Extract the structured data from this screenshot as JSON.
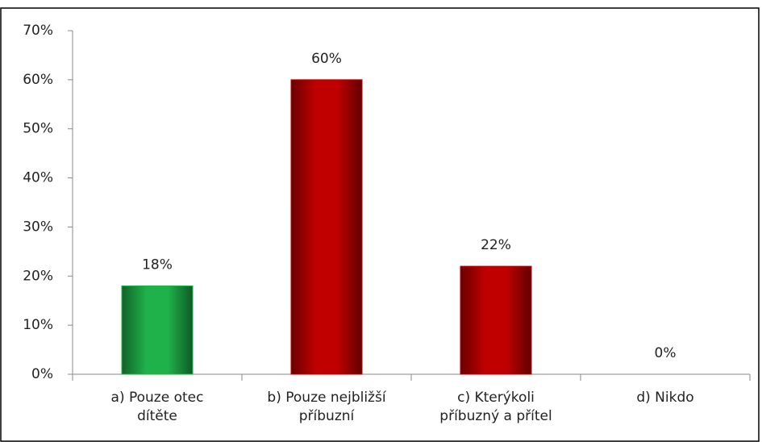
{
  "chart_data": {
    "type": "bar",
    "categories": [
      "a) Pouze otec dítěte",
      "b) Pouze nejbližší příbuzní",
      "c) Kterýkoli příbuzný a přítel",
      "d) Nikdo"
    ],
    "values": [
      18,
      60,
      22,
      0
    ],
    "value_labels": [
      "18%",
      "60%",
      "22%",
      "0%"
    ],
    "colors": [
      "#1fb24a",
      "#c00000",
      "#c00000",
      "#c00000"
    ],
    "ylim": [
      0,
      70
    ],
    "yticks": [
      {
        "value": 0,
        "label": "0%"
      },
      {
        "value": 10,
        "label": "10%"
      },
      {
        "value": 20,
        "label": "20%"
      },
      {
        "value": 30,
        "label": "30%"
      },
      {
        "value": 40,
        "label": "40%"
      },
      {
        "value": 50,
        "label": "50%"
      },
      {
        "value": 60,
        "label": "60%"
      },
      {
        "value": 70,
        "label": "70%"
      }
    ]
  }
}
